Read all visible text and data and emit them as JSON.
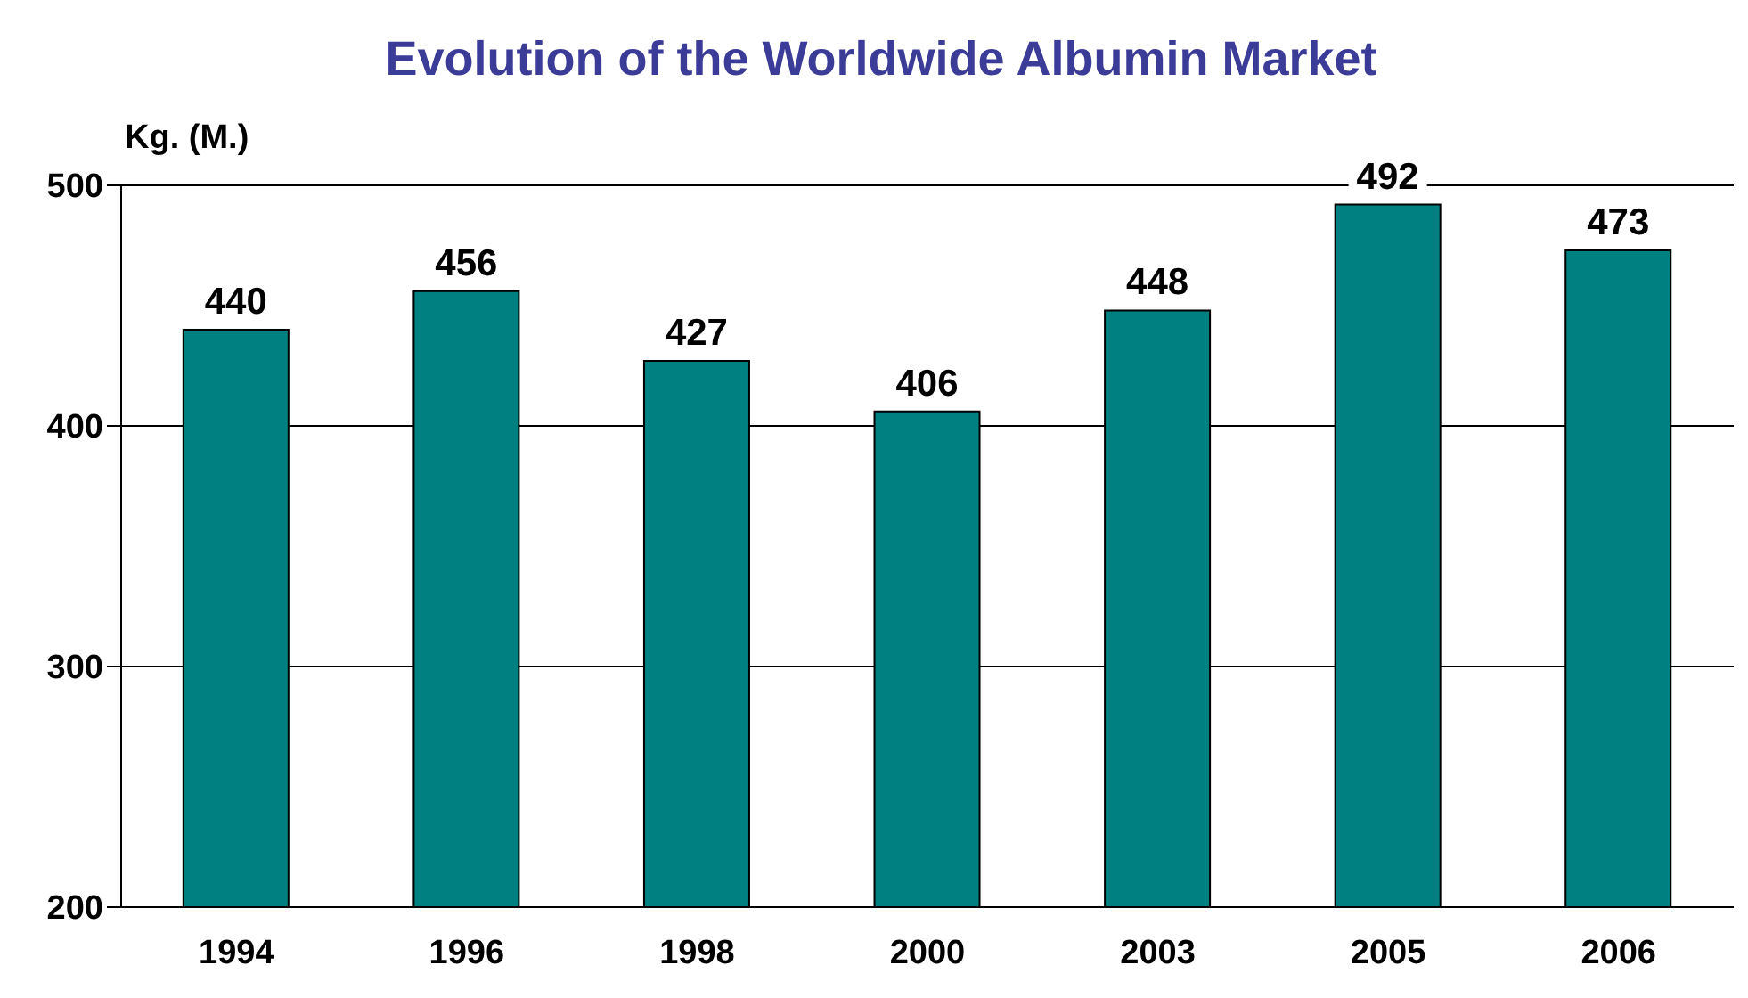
{
  "chart_data": {
    "type": "bar",
    "title": "Evolution of the Worldwide Albumin Market",
    "ylabel": "Kg. (M.)",
    "categories": [
      "1994",
      "1996",
      "1998",
      "2000",
      "2003",
      "2005",
      "2006"
    ],
    "values": [
      440,
      456,
      427,
      406,
      448,
      492,
      473
    ],
    "color": "#008080",
    "ylim": [
      200,
      500
    ],
    "yticks": [
      200,
      300,
      400,
      500
    ],
    "grid": "y",
    "data_labels": true
  }
}
